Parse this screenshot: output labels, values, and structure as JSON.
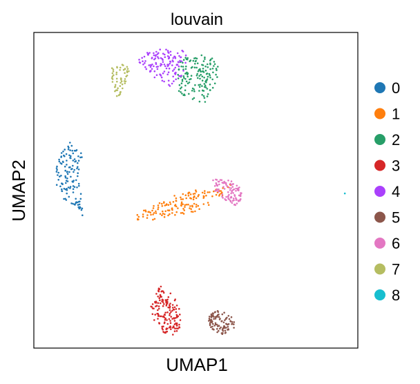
{
  "chart_data": {
    "type": "scatter",
    "title": "louvain",
    "xlabel": "UMAP1",
    "ylabel": "UMAP2",
    "grid": false,
    "ticks": false,
    "xlim": [
      0,
      10
    ],
    "ylim": [
      0,
      10
    ],
    "legend_position": "right",
    "series": [
      {
        "name": "0",
        "color": "#1f77b4",
        "count": 130,
        "shape": [
          [
            1.1,
            6.6
          ],
          [
            0.8,
            6.2
          ],
          [
            0.6,
            5.4
          ],
          [
            0.8,
            4.8
          ],
          [
            1.3,
            4.5
          ],
          [
            1.5,
            4.2
          ],
          [
            1.5,
            4.7
          ],
          [
            1.4,
            5.4
          ],
          [
            1.5,
            6.1
          ],
          [
            1.3,
            6.6
          ]
        ]
      },
      {
        "name": "1",
        "color": "#ff7f0e",
        "count": 150,
        "shape": [
          [
            3.1,
            4.2
          ],
          [
            4.2,
            4.8
          ],
          [
            5.0,
            5.0
          ],
          [
            5.5,
            5.0
          ],
          [
            6.1,
            5.2
          ],
          [
            6.0,
            5.0
          ],
          [
            5.6,
            4.6
          ],
          [
            4.9,
            4.3
          ],
          [
            3.9,
            4.1
          ],
          [
            3.2,
            4.0
          ]
        ]
      },
      {
        "name": "2",
        "color": "#279e68",
        "count": 150,
        "shape": [
          [
            4.5,
            9.2
          ],
          [
            5.2,
            9.3
          ],
          [
            5.8,
            9.1
          ],
          [
            5.6,
            8.2
          ],
          [
            5.3,
            7.8
          ],
          [
            5.0,
            7.8
          ],
          [
            4.5,
            8.0
          ],
          [
            4.4,
            8.6
          ]
        ]
      },
      {
        "name": "3",
        "color": "#d62728",
        "count": 150,
        "shape": [
          [
            3.9,
            2.0
          ],
          [
            4.1,
            1.8
          ],
          [
            4.3,
            1.7
          ],
          [
            4.5,
            1.3
          ],
          [
            4.6,
            0.6
          ],
          [
            4.3,
            0.4
          ],
          [
            4.0,
            0.5
          ],
          [
            3.7,
            0.9
          ],
          [
            3.6,
            1.3
          ]
        ]
      },
      {
        "name": "4",
        "color": "#aa40fc",
        "count": 130,
        "shape": [
          [
            3.2,
            9.1
          ],
          [
            3.5,
            9.4
          ],
          [
            4.0,
            9.5
          ],
          [
            4.5,
            9.4
          ],
          [
            4.8,
            9.5
          ],
          [
            4.6,
            8.6
          ],
          [
            4.2,
            8.3
          ],
          [
            3.8,
            8.5
          ],
          [
            3.5,
            8.8
          ]
        ]
      },
      {
        "name": "5",
        "color": "#8c564b",
        "count": 100,
        "shape": [
          [
            5.6,
            1.2
          ],
          [
            6.0,
            1.1
          ],
          [
            6.3,
            0.8
          ],
          [
            6.1,
            0.5
          ],
          [
            5.7,
            0.4
          ],
          [
            5.4,
            0.7
          ],
          [
            5.4,
            1.0
          ]
        ]
      },
      {
        "name": "6",
        "color": "#e377c2",
        "count": 100,
        "shape": [
          [
            5.5,
            5.4
          ],
          [
            6.1,
            5.3
          ],
          [
            6.5,
            5.0
          ],
          [
            6.3,
            4.5
          ],
          [
            6.0,
            4.6
          ],
          [
            5.6,
            4.9
          ]
        ]
      },
      {
        "name": "7",
        "color": "#b5bd61",
        "count": 55,
        "shape": [
          [
            2.4,
            8.9
          ],
          [
            2.8,
            9.0
          ],
          [
            3.0,
            8.8
          ],
          [
            2.8,
            8.3
          ],
          [
            2.6,
            7.9
          ],
          [
            2.4,
            8.2
          ]
        ]
      },
      {
        "name": "8",
        "color": "#17becf",
        "count": 1,
        "points": [
          [
            9.6,
            4.9
          ]
        ]
      }
    ]
  }
}
